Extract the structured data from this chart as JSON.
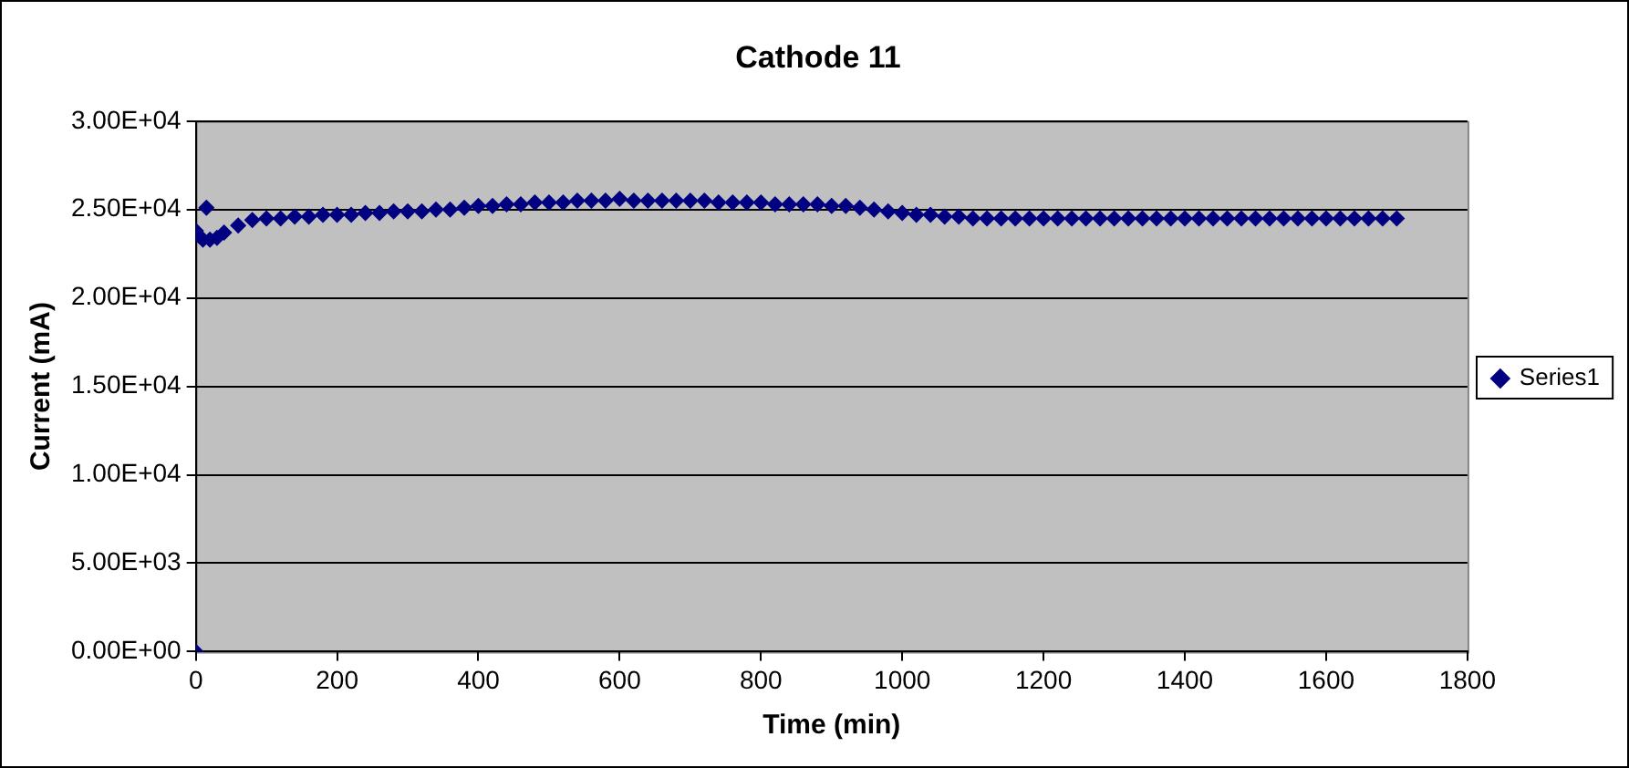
{
  "chart_data": {
    "type": "scatter",
    "title": "Cathode 11",
    "xlabel": "Time (min)",
    "ylabel": "Current (mA)",
    "xlim": [
      0,
      1800
    ],
    "xticks": [
      0,
      200,
      400,
      600,
      800,
      1000,
      1200,
      1400,
      1600,
      1800
    ],
    "ylim": [
      0,
      30000
    ],
    "yticks": [
      {
        "value": 0,
        "label": "0.00E+00"
      },
      {
        "value": 5000,
        "label": "5.00E+03"
      },
      {
        "value": 10000,
        "label": "1.00E+04"
      },
      {
        "value": 15000,
        "label": "1.50E+04"
      },
      {
        "value": 20000,
        "label": "2.00E+04"
      },
      {
        "value": 25000,
        "label": "2.50E+04"
      },
      {
        "value": 30000,
        "label": "3.00E+04"
      }
    ],
    "grid": "y",
    "legend": "right",
    "marker": "diamond",
    "series": [
      {
        "name": "Series1",
        "color": "#000080",
        "x": [
          0,
          0,
          5,
          10,
          15,
          20,
          30,
          40,
          60,
          80,
          100,
          120,
          140,
          160,
          180,
          200,
          220,
          240,
          260,
          280,
          300,
          320,
          340,
          360,
          380,
          400,
          420,
          440,
          460,
          480,
          500,
          520,
          540,
          560,
          580,
          600,
          620,
          640,
          660,
          680,
          700,
          720,
          740,
          760,
          780,
          800,
          820,
          840,
          860,
          880,
          900,
          920,
          940,
          960,
          980,
          1000,
          1020,
          1040,
          1060,
          1080,
          1100,
          1120,
          1140,
          1160,
          1180,
          1200,
          1220,
          1240,
          1260,
          1280,
          1300,
          1320,
          1340,
          1360,
          1380,
          1400,
          1420,
          1440,
          1460,
          1480,
          1500,
          1520,
          1540,
          1560,
          1580,
          1600,
          1620,
          1640,
          1660,
          1680,
          1700
        ],
        "values": [
          0,
          23800,
          23500,
          23300,
          25100,
          23300,
          23400,
          23700,
          24100,
          24400,
          24500,
          24500,
          24600,
          24600,
          24700,
          24700,
          24700,
          24800,
          24800,
          24900,
          24900,
          24900,
          25000,
          25000,
          25100,
          25200,
          25200,
          25300,
          25300,
          25400,
          25400,
          25400,
          25500,
          25500,
          25500,
          25600,
          25500,
          25500,
          25500,
          25500,
          25500,
          25500,
          25400,
          25400,
          25400,
          25400,
          25300,
          25300,
          25300,
          25300,
          25200,
          25200,
          25100,
          25000,
          24900,
          24800,
          24700,
          24700,
          24600,
          24600,
          24500,
          24500,
          24500,
          24500,
          24500,
          24500,
          24500,
          24500,
          24500,
          24500,
          24500,
          24500,
          24500,
          24500,
          24500,
          24500,
          24500,
          24500,
          24500,
          24500,
          24500,
          24500,
          24500,
          24500,
          24500,
          24500,
          24500,
          24500,
          24500,
          24500,
          24500
        ]
      }
    ]
  }
}
